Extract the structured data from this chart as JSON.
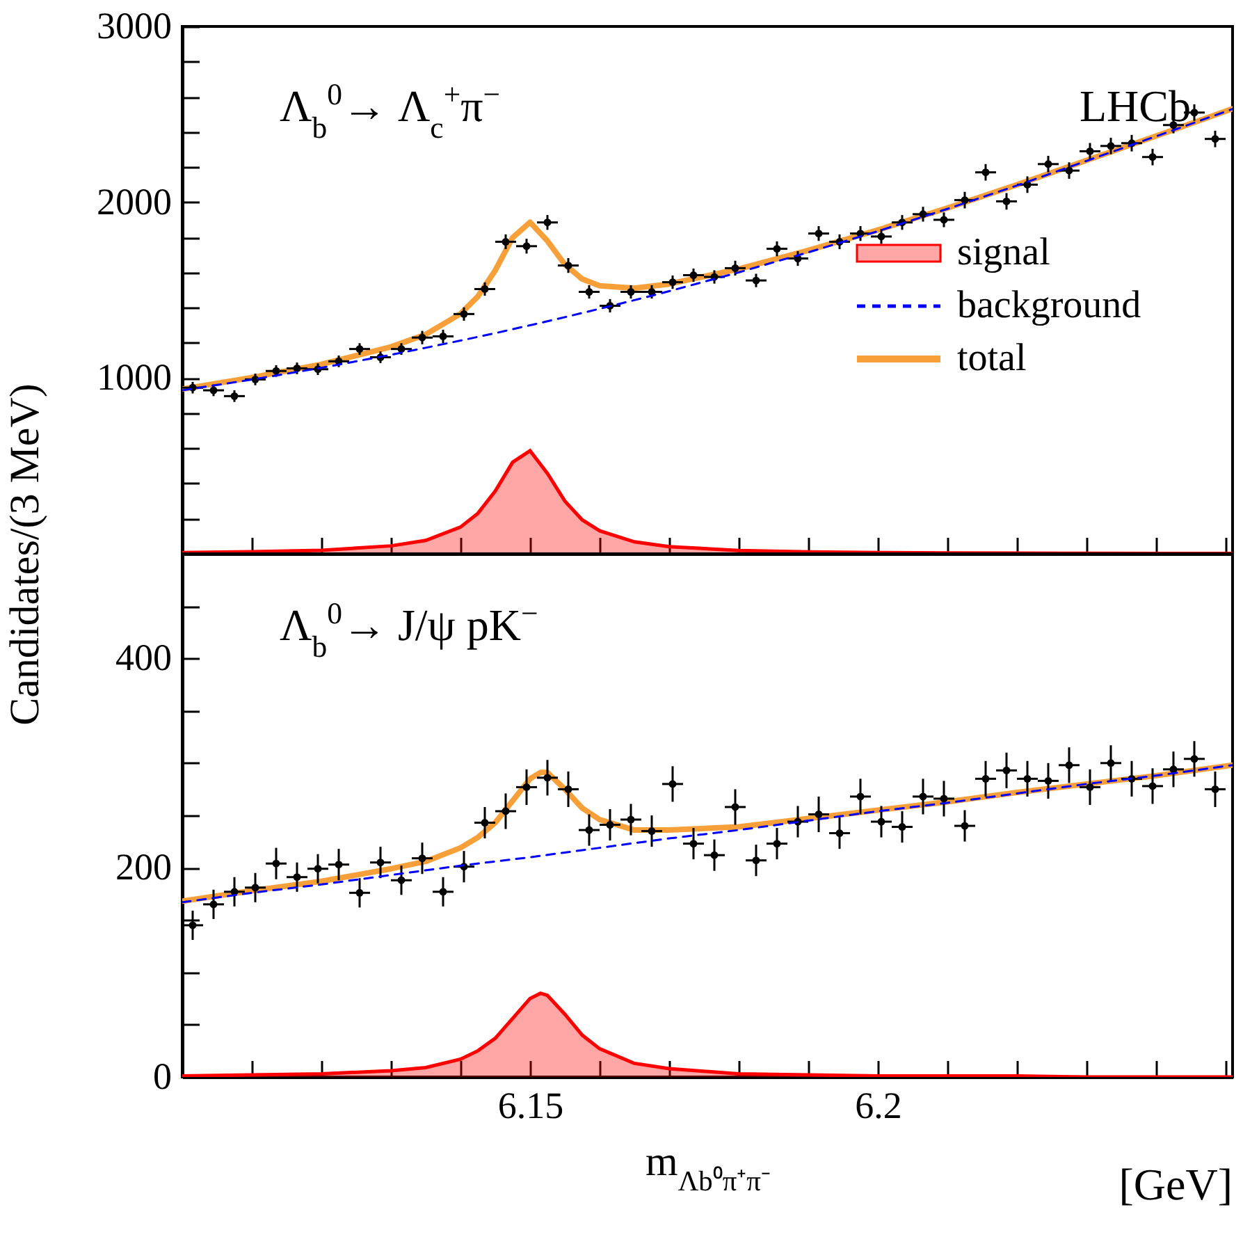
{
  "chart_data": [
    {
      "type": "line",
      "ylabel": "Candidates/(3 MeV)",
      "annotations": [
        "Λ$_{b}$$^{0}$→ Λ$_{c}$$^{+}$π$^{−}$",
        "LHCb"
      ],
      "xlim": [
        6.1,
        6.251
      ],
      "xticks": [
        {
          "value": 6.11,
          "label": null
        },
        {
          "value": 6.12,
          "label": null
        },
        {
          "value": 6.13,
          "label": null
        },
        {
          "value": 6.14,
          "label": null
        },
        {
          "value": 6.15,
          "label": null
        },
        {
          "value": 6.16,
          "label": null
        },
        {
          "value": 6.17,
          "label": null
        },
        {
          "value": 6.18,
          "label": null
        },
        {
          "value": 6.19,
          "label": null
        },
        {
          "value": 6.2,
          "label": null
        },
        {
          "value": 6.21,
          "label": null
        },
        {
          "value": 6.22,
          "label": null
        },
        {
          "value": 6.23,
          "label": null
        },
        {
          "value": 6.24,
          "label": null
        },
        {
          "value": 6.25,
          "label": null
        }
      ],
      "ylim": [
        0,
        3000
      ],
      "yticks": [
        {
          "value": 200,
          "label": null
        },
        {
          "value": 400,
          "label": null
        },
        {
          "value": 600,
          "label": null
        },
        {
          "value": 800,
          "label": null
        },
        1000,
        {
          "value": 1200,
          "label": null
        },
        {
          "value": 1400,
          "label": null
        },
        {
          "value": 1600,
          "label": null
        },
        {
          "value": 1800,
          "label": null
        },
        2000,
        {
          "value": 2200,
          "label": null
        },
        {
          "value": 2400,
          "label": null
        },
        {
          "value": 2600,
          "label": null
        },
        {
          "value": 2800,
          "label": null
        },
        3000
      ],
      "tick_labels": "y",
      "legend": "right",
      "series": [
        {
          "name": "signal",
          "type": "area",
          "color": "#ff0000",
          "x": [
            6.1,
            6.11,
            6.12,
            6.13,
            6.135,
            6.14,
            6.1425,
            6.145,
            6.1475,
            6.15,
            6.1525,
            6.155,
            6.1575,
            6.16,
            6.165,
            6.17,
            6.18,
            6.19,
            6.2,
            6.21,
            6.22,
            6.23,
            6.24,
            6.251
          ],
          "values": [
            7,
            12,
            20,
            45,
            76,
            152,
            230,
            357,
            521,
            586,
            457,
            300,
            193,
            131,
            68,
            41,
            19,
            11,
            7,
            5,
            4,
            3,
            2,
            2
          ]
        },
        {
          "name": "background",
          "type": "line",
          "line_style": "dashed",
          "color": "#0000ff",
          "x": [
            6.1,
            6.11,
            6.12,
            6.13,
            6.135,
            6.14,
            6.1425,
            6.145,
            6.1475,
            6.15,
            6.1525,
            6.155,
            6.1575,
            6.16,
            6.165,
            6.17,
            6.18,
            6.19,
            6.2,
            6.21,
            6.22,
            6.23,
            6.24,
            6.251
          ],
          "values": [
            930,
            991,
            1058,
            1132,
            1172,
            1213,
            1234,
            1255,
            1278,
            1300,
            1323,
            1346,
            1370,
            1394,
            1443,
            1494,
            1601,
            1715,
            1835,
            1962,
            2095,
            2235,
            2375,
            2530
          ]
        },
        {
          "name": "total",
          "color": "#f7a03a",
          "x": [
            6.1,
            6.11,
            6.12,
            6.13,
            6.135,
            6.14,
            6.1425,
            6.145,
            6.1475,
            6.15,
            6.1525,
            6.155,
            6.1575,
            6.16,
            6.165,
            6.17,
            6.18,
            6.19,
            6.2,
            6.21,
            6.22,
            6.23,
            6.24,
            6.251
          ],
          "values": [
            937,
            1003,
            1078,
            1177,
            1248,
            1365,
            1464,
            1612,
            1799,
            1886,
            1780,
            1646,
            1563,
            1525,
            1511,
            1535,
            1620,
            1726,
            1842,
            1967,
            2099,
            2238,
            2377,
            2532
          ]
        },
        {
          "type": "scatter",
          "marker": "circle",
          "color": "#000000",
          "x": [
            6.1015,
            6.1045,
            6.1075,
            6.1105,
            6.1135,
            6.1165,
            6.1195,
            6.1225,
            6.1255,
            6.1285,
            6.1315,
            6.1345,
            6.1375,
            6.1405,
            6.1435,
            6.1465,
            6.1495,
            6.1525,
            6.1555,
            6.1585,
            6.1615,
            6.1645,
            6.1675,
            6.1705,
            6.1735,
            6.1765,
            6.1795,
            6.1825,
            6.1855,
            6.1885,
            6.1915,
            6.1945,
            6.1975,
            6.2005,
            6.2035,
            6.2065,
            6.2095,
            6.2125,
            6.2155,
            6.2185,
            6.2215,
            6.2245,
            6.2275,
            6.2305,
            6.2335,
            6.2365,
            6.2395,
            6.2425,
            6.2455,
            6.2485
          ],
          "values": [
            945,
            930,
            897,
            992,
            1040,
            1055,
            1050,
            1095,
            1165,
            1118,
            1165,
            1230,
            1237,
            1364,
            1506,
            1775,
            1750,
            1885,
            1640,
            1490,
            1411,
            1490,
            1490,
            1545,
            1585,
            1575,
            1625,
            1555,
            1735,
            1680,
            1822,
            1775,
            1822,
            1805,
            1885,
            1932,
            1900,
            2012,
            2170,
            2005,
            2100,
            2217,
            2180,
            2290,
            2320,
            2336,
            2257,
            2439,
            2510,
            2360
          ],
          "errors": [
            33,
            33,
            33,
            33,
            33,
            33,
            33,
            33,
            33,
            33,
            33,
            38,
            38,
            38,
            38,
            42,
            42,
            42,
            42,
            38,
            38,
            38,
            38,
            38,
            38,
            38,
            42,
            38,
            42,
            42,
            42,
            42,
            42,
            42,
            42,
            42,
            42,
            47,
            47,
            47,
            47,
            47,
            47,
            47,
            47,
            47,
            47,
            47,
            47,
            47
          ],
          "xerrors": [
            0.0015,
            0.0015,
            0.0015,
            0.0015,
            0.0015,
            0.0015,
            0.0015,
            0.0015,
            0.0015,
            0.0015,
            0.0015,
            0.0015,
            0.0015,
            0.0015,
            0.0015,
            0.0015,
            0.0015,
            0.0015,
            0.0015,
            0.0015,
            0.0015,
            0.0015,
            0.0015,
            0.0015,
            0.0015,
            0.0015,
            0.0015,
            0.0015,
            0.0015,
            0.0015,
            0.0015,
            0.0015,
            0.0015,
            0.0015,
            0.0015,
            0.0015,
            0.0015,
            0.0015,
            0.0015,
            0.0015,
            0.0015,
            0.0015,
            0.0015,
            0.0015,
            0.0015,
            0.0015,
            0.0015,
            0.0015,
            0.0015,
            0.0015
          ]
        }
      ]
    },
    {
      "type": "line",
      "xlabel": "m$_{Λb⁰π⁺π⁻}$",
      "annotations": [
        "Λ$_{b}$$^{0}$→ J/ψ pK$^{−}$",
        "[GeV]"
      ],
      "xlim": [
        6.1,
        6.251
      ],
      "xticks": [
        {
          "value": 6.11,
          "label": null
        },
        {
          "value": 6.12,
          "label": null
        },
        {
          "value": 6.13,
          "label": null
        },
        {
          "value": 6.14,
          "label": null
        },
        6.15,
        {
          "value": 6.16,
          "label": null
        },
        {
          "value": 6.17,
          "label": null
        },
        {
          "value": 6.18,
          "label": null
        },
        {
          "value": 6.19,
          "label": null
        },
        6.2,
        {
          "value": 6.21,
          "label": null
        },
        {
          "value": 6.22,
          "label": null
        },
        {
          "value": 6.23,
          "label": null
        },
        {
          "value": 6.24,
          "label": null
        },
        {
          "value": 6.25,
          "label": null
        }
      ],
      "ylim": [
        0,
        500
      ],
      "yticks": [
        0,
        {
          "value": 50,
          "label": null
        },
        {
          "value": 100,
          "label": null
        },
        {
          "value": 150,
          "label": null
        },
        200,
        {
          "value": 250,
          "label": null
        },
        {
          "value": 300,
          "label": null
        },
        {
          "value": 350,
          "label": null
        },
        400,
        {
          "value": 450,
          "label": null
        }
      ],
      "series": [
        {
          "type": "area",
          "color": "#ff0000",
          "x": [
            6.1,
            6.11,
            6.12,
            6.13,
            6.135,
            6.14,
            6.1425,
            6.145,
            6.1475,
            6.15,
            6.1515,
            6.1525,
            6.155,
            6.1575,
            6.16,
            6.165,
            6.17,
            6.18,
            6.19,
            6.2,
            6.21,
            6.22,
            6.23,
            6.24,
            6.251
          ],
          "values": [
            1,
            2,
            3,
            6,
            9,
            17,
            25,
            37,
            56,
            75,
            80,
            78,
            60,
            40,
            27,
            13,
            8,
            3,
            2,
            1,
            1,
            1,
            0,
            0,
            0
          ]
        },
        {
          "type": "line",
          "line_style": "dashed",
          "color": "#0000ff",
          "x": [
            6.1,
            6.11,
            6.12,
            6.13,
            6.14,
            6.15,
            6.16,
            6.17,
            6.18,
            6.19,
            6.2,
            6.21,
            6.22,
            6.23,
            6.24,
            6.251
          ],
          "values": [
            167,
            176,
            184,
            193,
            202,
            210,
            219,
            228,
            236,
            245,
            254,
            262,
            271,
            280,
            288,
            298
          ]
        },
        {
          "color": "#f7a03a",
          "x": [
            6.1,
            6.11,
            6.12,
            6.13,
            6.135,
            6.14,
            6.1425,
            6.145,
            6.1475,
            6.15,
            6.1515,
            6.1525,
            6.155,
            6.1575,
            6.16,
            6.165,
            6.17,
            6.18,
            6.19,
            6.2,
            6.21,
            6.22,
            6.23,
            6.24,
            6.251
          ],
          "values": [
            168,
            178,
            187,
            199,
            206,
            219,
            229,
            243,
            264,
            285,
            291,
            291,
            275,
            257,
            246,
            236,
            236,
            239,
            247,
            255,
            263,
            272,
            280,
            288,
            298
          ]
        },
        {
          "type": "scatter",
          "marker": "circle",
          "color": "#000000",
          "x": [
            6.1015,
            6.1045,
            6.1075,
            6.1105,
            6.1135,
            6.1165,
            6.1195,
            6.1225,
            6.1255,
            6.1285,
            6.1315,
            6.1345,
            6.1375,
            6.1405,
            6.1435,
            6.1465,
            6.1495,
            6.1525,
            6.1555,
            6.1585,
            6.1615,
            6.1645,
            6.1675,
            6.1705,
            6.1735,
            6.1765,
            6.1795,
            6.1825,
            6.1855,
            6.1885,
            6.1915,
            6.1945,
            6.1975,
            6.2005,
            6.2035,
            6.2065,
            6.2095,
            6.2125,
            6.2155,
            6.2185,
            6.2215,
            6.2245,
            6.2275,
            6.2305,
            6.2335,
            6.2365,
            6.2395,
            6.2425,
            6.2455,
            6.2485
          ],
          "values": [
            145,
            165,
            177,
            181,
            204,
            191,
            199,
            203,
            176,
            205,
            188,
            209,
            177,
            201,
            243,
            254,
            277,
            286,
            275,
            236,
            241,
            246,
            235,
            280,
            223,
            212,
            258,
            207,
            223,
            244,
            251,
            233,
            268,
            244,
            239,
            268,
            266,
            240,
            285,
            293,
            285,
            283,
            298,
            277,
            300,
            285,
            278,
            294,
            304,
            275
          ],
          "errors": [
            14,
            14,
            14,
            14,
            15,
            14,
            14,
            15,
            14,
            15,
            14,
            15,
            14,
            15,
            15,
            17,
            17,
            17,
            17,
            15,
            15,
            15,
            15,
            17,
            15,
            15,
            17,
            15,
            15,
            15,
            17,
            15,
            17,
            15,
            15,
            17,
            17,
            15,
            17,
            17,
            17,
            17,
            17,
            17,
            17,
            17,
            17,
            17,
            17,
            17
          ],
          "xerrors": [
            0.0015,
            0.0015,
            0.0015,
            0.0015,
            0.0015,
            0.0015,
            0.0015,
            0.0015,
            0.0015,
            0.0015,
            0.0015,
            0.0015,
            0.0015,
            0.0015,
            0.0015,
            0.0015,
            0.0015,
            0.0015,
            0.0015,
            0.0015,
            0.0015,
            0.0015,
            0.0015,
            0.0015,
            0.0015,
            0.0015,
            0.0015,
            0.0015,
            0.0015,
            0.0015,
            0.0015,
            0.0015,
            0.0015,
            0.0015,
            0.0015,
            0.0015,
            0.0015,
            0.0015,
            0.0015,
            0.0015,
            0.0015,
            0.0015,
            0.0015,
            0.0015,
            0.0015,
            0.0015,
            0.0015,
            0.0015,
            0.0015,
            0.0015
          ]
        }
      ]
    }
  ]
}
